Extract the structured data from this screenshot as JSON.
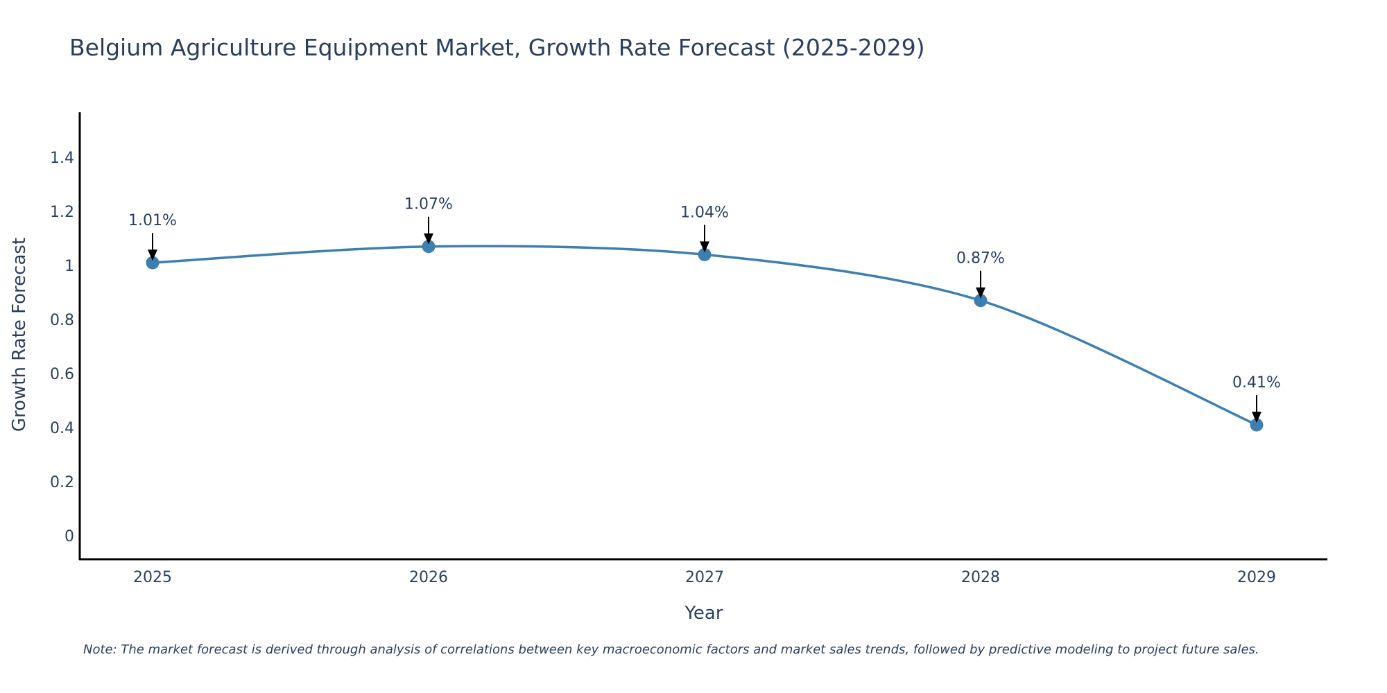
{
  "chart_data": {
    "type": "line",
    "title": "Belgium Agriculture Equipment Market, Growth Rate Forecast (2025-2029)",
    "xlabel": "Year",
    "ylabel": "Growth Rate Forecast",
    "categories": [
      "2025",
      "2026",
      "2027",
      "2028",
      "2029"
    ],
    "values": [
      1.01,
      1.07,
      1.04,
      0.87,
      0.41
    ],
    "data_labels": [
      "1.01%",
      "1.07%",
      "1.04%",
      "0.87%",
      "0.41%"
    ],
    "ylim": [
      -0.1,
      1.57
    ],
    "yticks": [
      0,
      0.2,
      0.4,
      0.6,
      0.8,
      1,
      1.2,
      1.4
    ],
    "ytick_labels": [
      "0",
      "0.2",
      "0.4",
      "0.6",
      "0.8",
      "1",
      "1.2",
      "1.4"
    ],
    "grid": false,
    "legend": "none",
    "line_color": "#3d7fb0",
    "marker_color": "#3d7fb0",
    "note": "Note: The market forecast is derived through analysis of correlations between key macroeconomic factors and market sales trends, followed by predictive modeling to project future sales."
  }
}
